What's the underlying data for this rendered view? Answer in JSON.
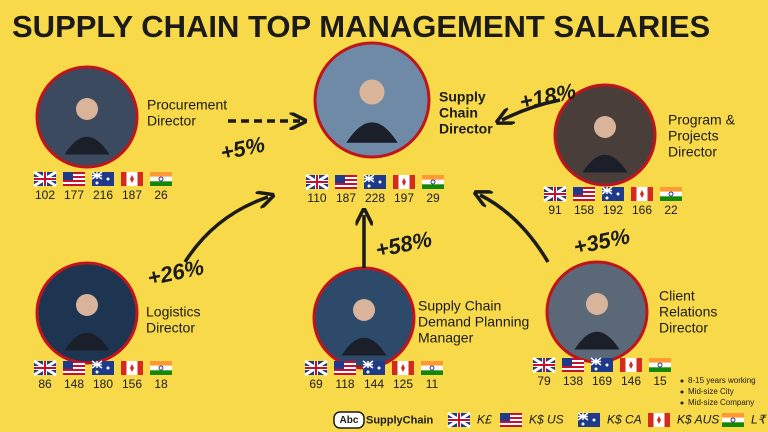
{
  "title": "SUPPLY CHAIN TOP MANAGEMENT SALARIES",
  "nodes": [
    {
      "label": [
        "Procurement",
        "Director"
      ],
      "values": [
        102,
        177,
        216,
        187,
        26
      ]
    },
    {
      "label": [
        "Supply",
        "Chain",
        "Director"
      ],
      "values": [
        110,
        187,
        228,
        197,
        29
      ]
    },
    {
      "label": [
        "Program &",
        "Projects",
        "Director"
      ],
      "values": [
        91,
        158,
        192,
        166,
        22
      ]
    },
    {
      "label": [
        "Logistics",
        "Director"
      ],
      "values": [
        86,
        148,
        180,
        156,
        18
      ]
    },
    {
      "label": [
        "Supply Chain",
        "Demand Planning",
        "Manager"
      ],
      "values": [
        69,
        118,
        144,
        125,
        11
      ]
    },
    {
      "label": [
        "Client",
        "Relations",
        "Director"
      ],
      "values": [
        79,
        138,
        169,
        146,
        15
      ]
    }
  ],
  "arrows": [
    {
      "label": "+5%"
    },
    {
      "label": "+26%"
    },
    {
      "label": "+58%"
    },
    {
      "label": "+35%"
    },
    {
      "label": "+18%"
    }
  ],
  "notes": [
    "8-15 years working",
    "Mid-size City",
    "Mid-size Company"
  ],
  "legend": {
    "logo": "Abc",
    "brand": "SupplyChain",
    "currencies": [
      "K£",
      "K$ US",
      "K$ CA",
      "K$ AUS",
      "L₹"
    ]
  }
}
